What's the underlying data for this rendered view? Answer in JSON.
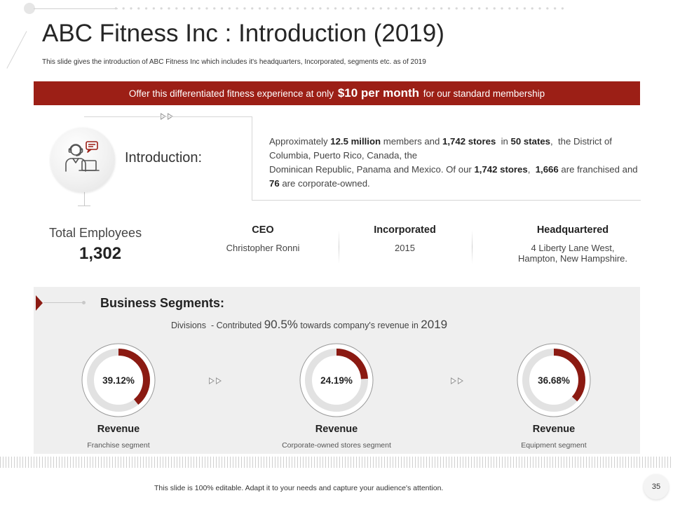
{
  "slide": {
    "title": "ABC Fitness Inc : Introduction (2019)",
    "subtitle": "This slide gives the introduction of ABC Fitness Inc which includes it's headquarters, Incorporated, segments etc. as of 2019",
    "page_number": "35",
    "footer_note": "This slide is 100% editable. Adapt it to your needs and capture your audience's attention."
  },
  "banner": {
    "prefix": "Offer this differentiated fitness experience at only ",
    "highlight": "$10 per month",
    "suffix": " for our standard membership"
  },
  "introduction": {
    "label": "Introduction:",
    "icon": "customer-support-agent-icon",
    "p1_a": "Approximately ",
    "p1_b": "12.5 million",
    "p1_c": " members and ",
    "p1_d": "1,742 stores",
    "p1_e": "  in ",
    "p1_f": "50 states",
    "p1_g": ",  the District of Columbia, Puerto Rico, Canada, the",
    "p2_a": "Dominican Republic, Panama and Mexico. Of our ",
    "p2_b": "1,742 stores",
    "p2_c": ",  ",
    "p2_d": "1,666",
    "p2_e": " are franchised and ",
    "p2_f": "76",
    "p2_g": " are corporate-owned."
  },
  "employees": {
    "label": "Total Employees",
    "value": "1,302"
  },
  "facts": [
    {
      "head": "CEO",
      "value": "Christopher Ronni"
    },
    {
      "head": "Incorporated",
      "value": "2015"
    },
    {
      "head": "Headquartered",
      "value_line1": "4 Liberty Lane West,",
      "value_line2": "Hampton, New Hampshire."
    }
  ],
  "segments": {
    "title": "Business Segments:",
    "sub_a": "Divisions  - Contributed ",
    "sub_b": "90.5%",
    "sub_c": " towards company's revenue in ",
    "sub_d": "2019",
    "items": [
      {
        "percent_label": "39.12%",
        "percent": 39.12,
        "name": "Revenue",
        "desc": "Franchise segment"
      },
      {
        "percent_label": "24.19%",
        "percent": 24.19,
        "name": "Revenue",
        "desc": "Corporate-owned stores segment"
      },
      {
        "percent_label": "36.68%",
        "percent": 36.68,
        "name": "Revenue",
        "desc": "Equipment segment"
      }
    ]
  },
  "colors": {
    "accent": "#9c1f16",
    "ring_track": "#e2e2e2",
    "ring_fill": "#8b1a12"
  }
}
